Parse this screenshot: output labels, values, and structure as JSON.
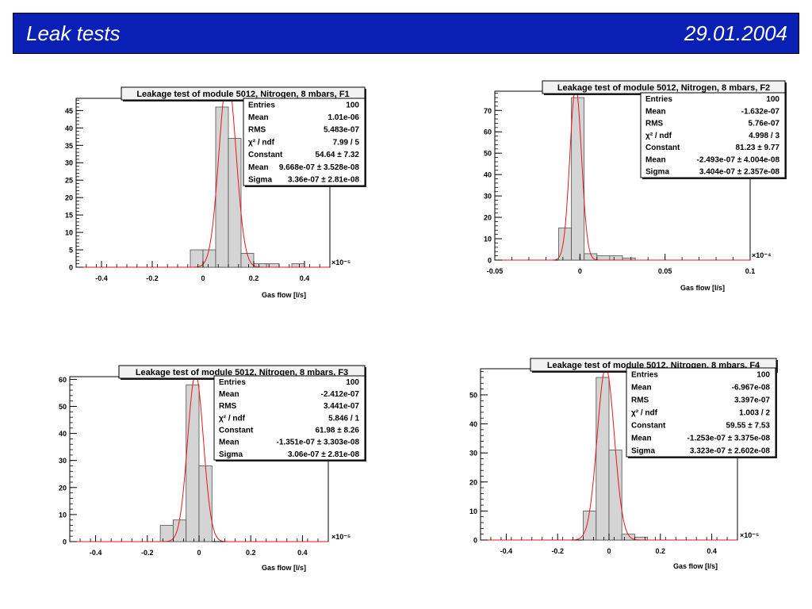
{
  "header": {
    "title": "Leak tests",
    "date": "29.01.2004",
    "background": "#0a1fb4"
  },
  "colors": {
    "histogram_fill": "#d4d4d4",
    "histogram_stroke": "#505050",
    "fit_curve": "#e8161b"
  },
  "chart_data": [
    {
      "type": "bar",
      "title": "Leakage test of module 5012, Nitrogen, 8 mbars, F1",
      "xlabel": "Gas flow [l/s]",
      "x_multiplier": "×10⁻⁵",
      "xlim": [
        -0.5,
        0.5
      ],
      "ylim": [
        0,
        48.5
      ],
      "xticks": [
        -0.4,
        -0.2,
        0,
        0.2,
        0.4
      ],
      "xtick_labels": [
        "-0.4",
        "-0.2",
        "0",
        "0.2",
        "0.4"
      ],
      "yticks": [
        0,
        5,
        10,
        15,
        20,
        25,
        30,
        35,
        40,
        45
      ],
      "bin_width": 0.05,
      "bins": [
        [
          -0.05,
          5
        ],
        [
          0.0,
          5
        ],
        [
          0.05,
          46
        ],
        [
          0.1,
          37
        ],
        [
          0.15,
          4
        ],
        [
          0.2,
          1
        ],
        [
          0.25,
          1
        ],
        [
          0.35,
          1
        ]
      ],
      "fit": {
        "constant": 54.64,
        "mean": 0.09668,
        "sigma": 0.0336
      },
      "stats": [
        [
          "Entries",
          "100"
        ],
        [
          "Mean",
          "1.01e-06"
        ],
        [
          "RMS",
          "5.483e-07"
        ],
        [
          "χ² / ndf",
          "7.99 / 5"
        ],
        [
          "Constant",
          "54.64 ± 7.32"
        ],
        [
          "Mean",
          "9.668e-07 ± 3.528e-08"
        ],
        [
          "Sigma",
          "3.36e-07 ± 2.81e-08"
        ]
      ]
    },
    {
      "type": "bar",
      "title": "Leakage test of module 5012, Nitrogen, 8 mbars, F2",
      "xlabel": "Gas flow [l/s]",
      "x_multiplier": "×10⁻⁴",
      "xlim": [
        -0.05,
        0.1
      ],
      "ylim": [
        0,
        79
      ],
      "xticks": [
        -0.05,
        0,
        0.05,
        0.1
      ],
      "xtick_labels": [
        "-0.05",
        "0",
        "0.05",
        "0.1"
      ],
      "yticks": [
        0,
        10,
        20,
        30,
        40,
        50,
        60,
        70
      ],
      "bin_width": 0.0075,
      "bins": [
        [
          -0.0125,
          15
        ],
        [
          -0.005,
          76
        ],
        [
          0.0025,
          3
        ],
        [
          0.01,
          2
        ],
        [
          0.0175,
          2
        ],
        [
          0.025,
          1
        ]
      ],
      "fit": {
        "constant": 81.23,
        "mean": -0.002493,
        "sigma": 0.003404
      },
      "stats": [
        [
          "Entries",
          "100"
        ],
        [
          "Mean",
          "-1.632e-07"
        ],
        [
          "RMS",
          "5.76e-07"
        ],
        [
          "χ² / ndf",
          "4.998 / 3"
        ],
        [
          "Constant",
          "81.23 ± 9.77"
        ],
        [
          "Mean",
          "-2.493e-07 ± 4.004e-08"
        ],
        [
          "Sigma",
          "3.404e-07 ± 2.357e-08"
        ]
      ]
    },
    {
      "type": "bar",
      "title": "Leakage test of module 5012, Nitrogen, 8 mbars, F3",
      "xlabel": "Gas flow [l/s]",
      "x_multiplier": "×10⁻⁵",
      "xlim": [
        -0.5,
        0.5
      ],
      "ylim": [
        0,
        61
      ],
      "xticks": [
        -0.4,
        -0.2,
        0,
        0.2,
        0.4
      ],
      "xtick_labels": [
        "-0.4",
        "-0.2",
        "0",
        "0.2",
        "0.4"
      ],
      "yticks": [
        0,
        10,
        20,
        30,
        40,
        50,
        60
      ],
      "bin_width": 0.05,
      "bins": [
        [
          -0.15,
          6
        ],
        [
          -0.1,
          8
        ],
        [
          -0.05,
          58
        ],
        [
          0.0,
          28
        ]
      ],
      "fit": {
        "constant": 61.98,
        "mean": -0.01351,
        "sigma": 0.0306
      },
      "stats": [
        [
          "Entries",
          "100"
        ],
        [
          "Mean",
          "-2.412e-07"
        ],
        [
          "RMS",
          "3.441e-07"
        ],
        [
          "χ² / ndf",
          "5.846 / 1"
        ],
        [
          "Constant",
          "61.98 ± 8.26"
        ],
        [
          "Mean",
          "-1.351e-07 ± 3.303e-08"
        ],
        [
          "Sigma",
          "3.06e-07 ± 2.81e-08"
        ]
      ]
    },
    {
      "type": "bar",
      "title": "Leakage test of module 5012, Nitrogen, 8 mbars, F4",
      "xlabel": "Gas flow [l/s]",
      "x_multiplier": "×10⁻⁵",
      "xlim": [
        -0.5,
        0.5
      ],
      "ylim": [
        0,
        59
      ],
      "xticks": [
        -0.4,
        -0.2,
        0,
        0.2,
        0.4
      ],
      "xtick_labels": [
        "-0.4",
        "-0.2",
        "0",
        "0.2",
        "0.4"
      ],
      "yticks": [
        0,
        10,
        20,
        30,
        40,
        50
      ],
      "bin_width": 0.05,
      "bins": [
        [
          -0.1,
          10
        ],
        [
          -0.05,
          56
        ],
        [
          0.0,
          31
        ],
        [
          0.05,
          2
        ],
        [
          0.1,
          1
        ]
      ],
      "fit": {
        "constant": 59.55,
        "mean": -0.01253,
        "sigma": 0.03323
      },
      "stats": [
        [
          "Entries",
          "100"
        ],
        [
          "Mean",
          "-6.967e-08"
        ],
        [
          "RMS",
          "3.397e-07"
        ],
        [
          "χ² / ndf",
          "1.003 / 2"
        ],
        [
          "Constant",
          "59.55 ± 7.53"
        ],
        [
          "Mean",
          "-1.253e-07 ± 3.375e-08"
        ],
        [
          "Sigma",
          "3.323e-07 ± 2.602e-08"
        ]
      ]
    }
  ]
}
